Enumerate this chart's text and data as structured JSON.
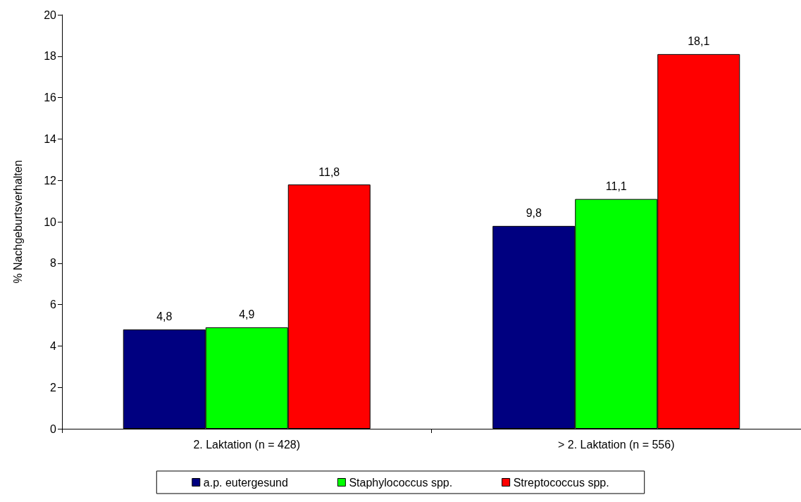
{
  "chart_data": {
    "type": "bar",
    "ylabel": "% Nachgeburtsverhalten",
    "categories": [
      "2. Laktation (n = 428)",
      "> 2. Laktation (n = 556)"
    ],
    "series": [
      {
        "name": "a.p. eutergesund",
        "color": "#000080",
        "values": [
          4.8,
          9.8
        ],
        "value_labels": [
          "4,8",
          "9,8"
        ]
      },
      {
        "name": "Staphylococcus spp.",
        "color": "#00ff00",
        "values": [
          4.9,
          11.1
        ],
        "value_labels": [
          "4,9",
          "11,1"
        ]
      },
      {
        "name": "Streptococcus spp.",
        "color": "#ff0000",
        "values": [
          11.8,
          18.1
        ],
        "value_labels": [
          "11,8",
          "18,1"
        ]
      }
    ],
    "ylim": [
      0,
      20
    ],
    "yticks": [
      0,
      2,
      4,
      6,
      8,
      10,
      12,
      14,
      16,
      18,
      20
    ],
    "grid": false,
    "legend": "bottom"
  }
}
